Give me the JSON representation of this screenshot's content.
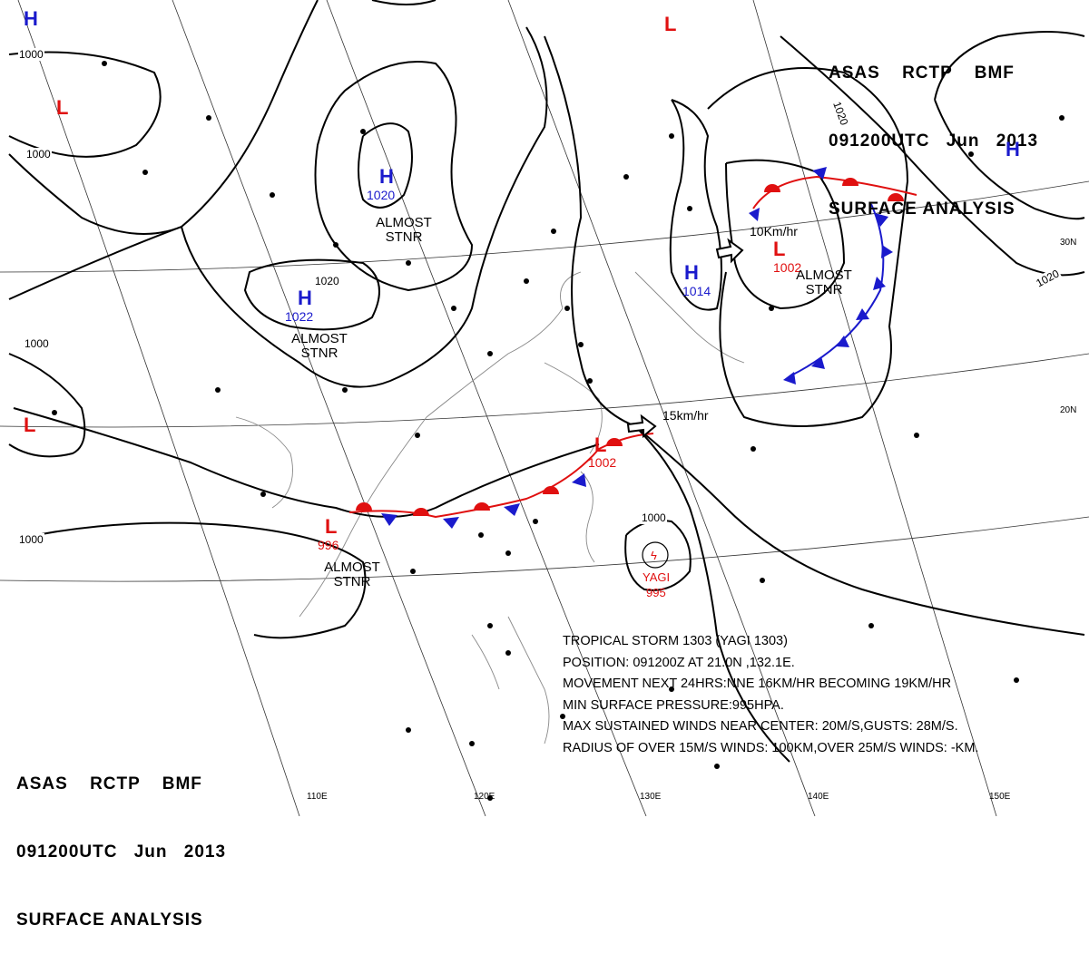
{
  "header_top": {
    "agency": "ASAS RCTP BMF",
    "time": "091200UTC Jun 2013",
    "product": "SURFACE ANALYSIS"
  },
  "header_bottom": {
    "agency": "ASAS RCTP BMF",
    "time": "091200UTC Jun 2013",
    "product": "SURFACE ANALYSIS"
  },
  "pressure_systems": [
    {
      "id": "h-northwest",
      "type": "H",
      "value": ""
    },
    {
      "id": "l-northwest",
      "type": "L",
      "value": ""
    },
    {
      "id": "h-mongolia",
      "type": "H",
      "value": "1020"
    },
    {
      "id": "h-tibet",
      "type": "H",
      "value": "1022"
    },
    {
      "id": "l-west",
      "type": "L",
      "value": ""
    },
    {
      "id": "l-southchina",
      "type": "L",
      "value": "996"
    },
    {
      "id": "l-taiwan",
      "type": "L",
      "value": "1002"
    },
    {
      "id": "h-eastchinasea",
      "type": "H",
      "value": "1014"
    },
    {
      "id": "l-japan",
      "type": "L",
      "value": "1002"
    },
    {
      "id": "l-north",
      "type": "L",
      "value": ""
    },
    {
      "id": "h-northeast",
      "type": "H",
      "value": ""
    }
  ],
  "stationary_notes": [
    "ALMOST STNR",
    "ALMOST STNR",
    "ALMOST STNR",
    "ALMOST STNR"
  ],
  "movements": {
    "japan_low": "10Km/hr",
    "taiwan_low": "15km/hr"
  },
  "isobar_labels": [
    "1000",
    "1000",
    "1000",
    "1020",
    "1020",
    "1020",
    "1000",
    "1000",
    "1020"
  ],
  "typhoon": {
    "name": "YAGI",
    "pressure": "995"
  },
  "storm_info": [
    "TROPICAL STORM 1303 (YAGI 1303)",
    "POSITION: 091200Z AT 21.0N ,132.1E.",
    "MOVEMENT NEXT 24HRS:NNE 16KM/HR BECOMING 19KM/HR",
    "MIN SURFACE PRESSURE:995HPA.",
    "MAX SUSTAINED WINDS NEAR CENTER: 20M/S,GUSTS: 28M/S.",
    "RADIUS OF OVER 15M/S WINDS: 100KM,OVER 25M/S WINDS: -KM."
  ],
  "grid_labels": {
    "lon": [
      "110E",
      "120E",
      "130E",
      "140E",
      "150E"
    ],
    "lat": [
      "30N",
      "20N"
    ]
  },
  "colors": {
    "high": "#1a1acc",
    "low": "#e01010",
    "isobar": "#000000",
    "cold_front": "#1a1acc",
    "warm_front": "#e01010"
  }
}
